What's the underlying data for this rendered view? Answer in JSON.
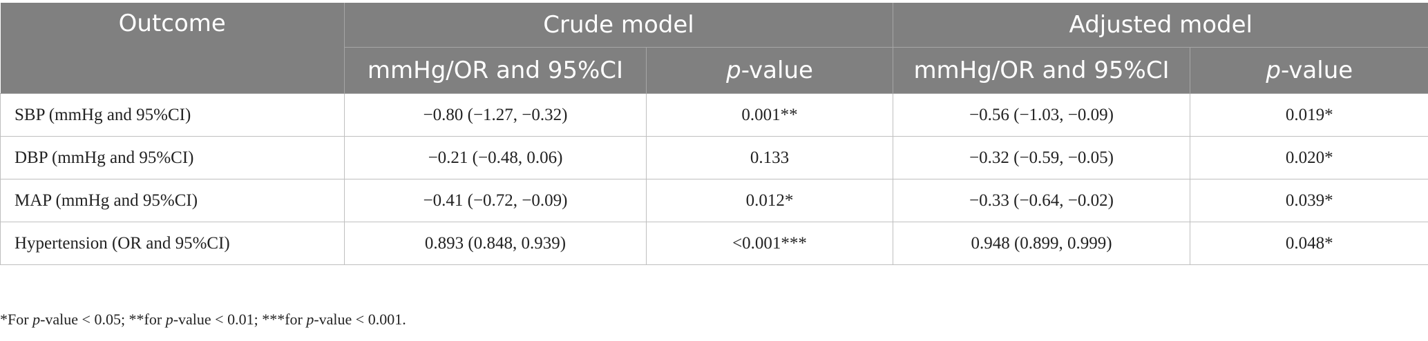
{
  "table": {
    "header": {
      "outcome": "Outcome",
      "crude_model": "Crude model",
      "adjusted_model": "Adjusted model",
      "col_estimate": "mmHg/OR and 95%CI",
      "col_p_italic": "p",
      "col_p_rest": "-value"
    },
    "rows": [
      {
        "outcome": "SBP (mmHg and 95%CI)",
        "crude_est": "−0.80 (−1.27, −0.32)",
        "crude_p": "0.001**",
        "adj_est": "−0.56 (−1.03, −0.09)",
        "adj_p": "0.019*"
      },
      {
        "outcome": "DBP (mmHg and 95%CI)",
        "crude_est": "−0.21 (−0.48, 0.06)",
        "crude_p": "0.133",
        "adj_est": "−0.32 (−0.59, −0.05)",
        "adj_p": "0.020*"
      },
      {
        "outcome": "MAP (mmHg and 95%CI)",
        "crude_est": "−0.41 (−0.72, −0.09)",
        "crude_p": "0.012*",
        "adj_est": "−0.33 (−0.64, −0.02)",
        "adj_p": "0.039*"
      },
      {
        "outcome": "Hypertension (OR and 95%CI)",
        "crude_est": "0.893 (0.848, 0.939)",
        "crude_p": "<0.001***",
        "adj_est": "0.948 (0.899, 0.999)",
        "adj_p": "0.048*"
      }
    ]
  },
  "footnote": {
    "p1": "*For ",
    "p2": "-value < 0.05; **for ",
    "p3": "-value < 0.01; ***for ",
    "p4": "-value < 0.001.",
    "p_italic": "p"
  }
}
